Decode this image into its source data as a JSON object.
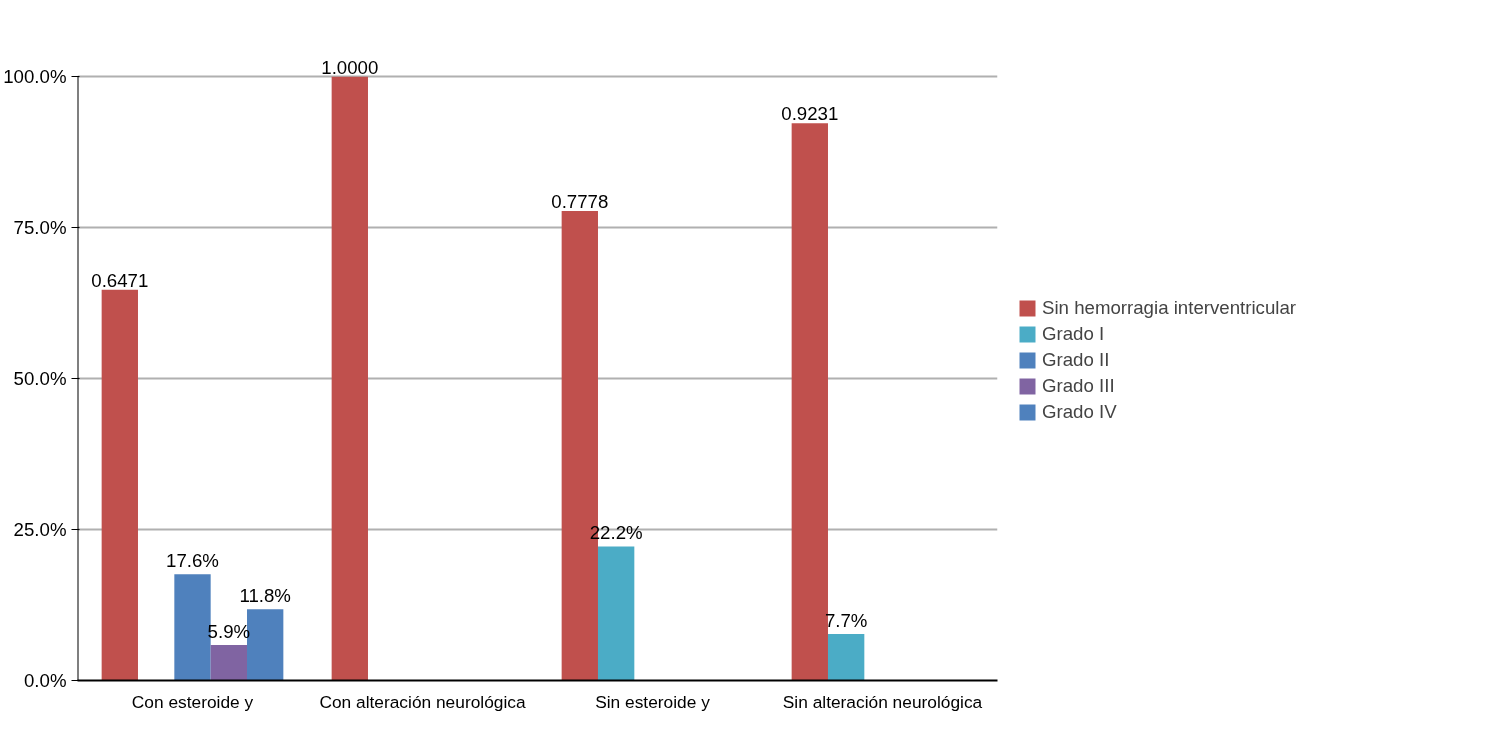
{
  "chart_data": {
    "type": "bar",
    "categories": [
      "Con esteroide y",
      "Con alteración neurológica",
      "Sin esteroide y",
      "Sin alteración neurológica"
    ],
    "series": [
      {
        "name": "Sin hemorragia interventricular",
        "color": "#c0504d",
        "values": [
          0.6471,
          1.0,
          0.7778,
          0.9231
        ],
        "value_labels": [
          "0.6471",
          "1.0000",
          "0.7778",
          "0.9231"
        ]
      },
      {
        "name": "Grado I",
        "color": "#4bacc6",
        "values": [
          null,
          null,
          0.222,
          0.077
        ],
        "value_labels": [
          null,
          null,
          "22.2%",
          "7.7%"
        ]
      },
      {
        "name": "Grado II",
        "color": "#4f81bd",
        "values": [
          0.176,
          null,
          null,
          null
        ],
        "value_labels": [
          "17.6%",
          null,
          null,
          null
        ]
      },
      {
        "name": "Grado III",
        "color": "#8064a2",
        "values": [
          0.059,
          null,
          null,
          null
        ],
        "value_labels": [
          "5.9%",
          null,
          null,
          null
        ]
      },
      {
        "name": "Grado IV",
        "color": "#4f81bd",
        "values": [
          0.118,
          null,
          null,
          null
        ],
        "value_labels": [
          "11.8%",
          null,
          null,
          null
        ]
      }
    ],
    "ylim": [
      0,
      1
    ],
    "yticks": [
      {
        "value": 0,
        "label": "0.0%"
      },
      {
        "value": 0.25,
        "label": "25.0%"
      },
      {
        "value": 0.5,
        "label": "50.0%"
      },
      {
        "value": 0.75,
        "label": "75.0%"
      },
      {
        "value": 1,
        "label": "100.0%"
      }
    ],
    "grid": "y",
    "legend": "right"
  }
}
